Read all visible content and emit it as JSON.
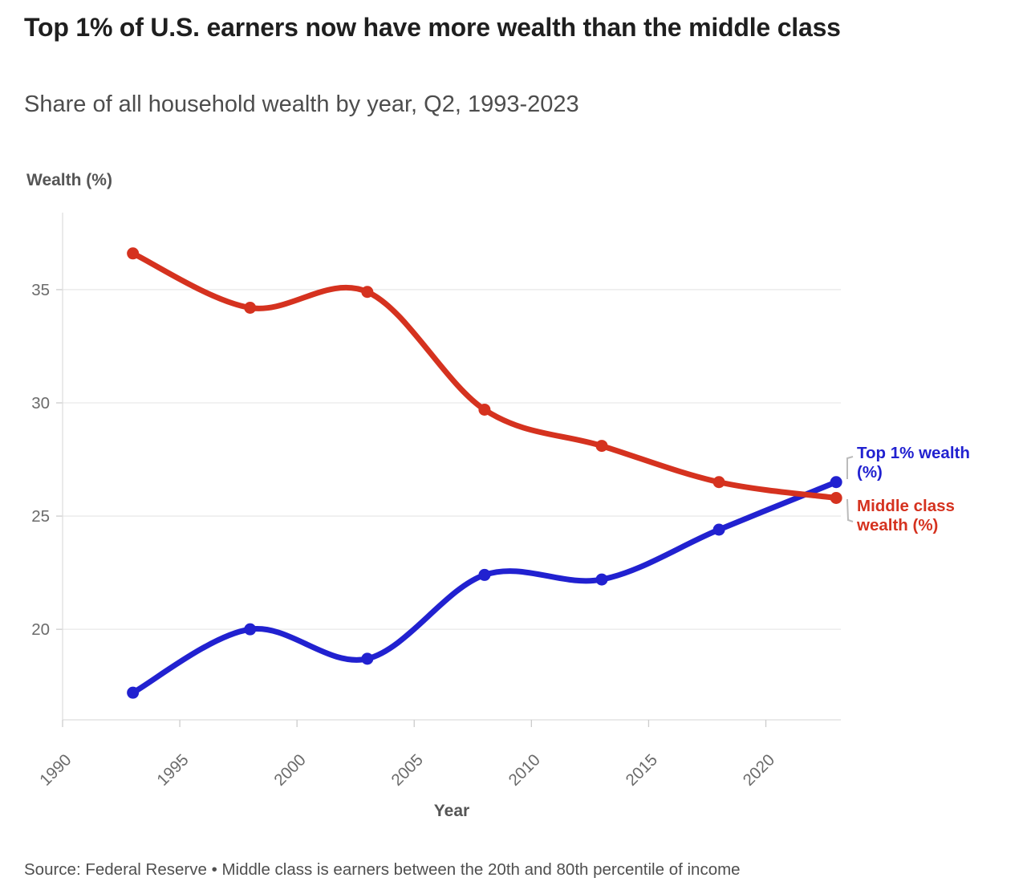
{
  "header": {
    "title": "Top 1% of U.S. earners now have more wealth than the middle class",
    "subtitle": "Share of all household wealth by year, Q2, 1993-2023"
  },
  "chart_data": {
    "type": "line",
    "title": "Top 1% of U.S. earners now have more wealth than the middle class",
    "subtitle": "Share of all household wealth by year, Q2, 1993-2023",
    "xlabel": "Year",
    "ylabel": "Wealth (%)",
    "x": [
      1993,
      1998,
      2003,
      2008,
      2013,
      2018,
      2023
    ],
    "series": [
      {
        "name": "Top 1% wealth (%)",
        "color": "#2121d0",
        "values": [
          17.2,
          20.0,
          18.7,
          22.4,
          22.2,
          24.4,
          26.5
        ]
      },
      {
        "name": "Middle class wealth (%)",
        "color": "#d5321f",
        "values": [
          36.6,
          34.2,
          34.9,
          29.7,
          28.1,
          26.5,
          25.8
        ]
      }
    ],
    "x_ticks": [
      1990,
      1995,
      2000,
      2005,
      2010,
      2015,
      2020
    ],
    "y_ticks": [
      20,
      25,
      30,
      35
    ],
    "x_range": [
      1990,
      2023.2
    ],
    "y_range": [
      16,
      38.4
    ],
    "grid": "horizontal",
    "curve": "smoothed",
    "legend_position": "right-of-line-ends"
  },
  "legend": {
    "top1_label": "Top 1% wealth (%)",
    "middle_label": "Middle class wealth (%)"
  },
  "footer": {
    "source": "Source: Federal Reserve • Middle class is earners between the 20th and 80th percentile of income"
  },
  "colors": {
    "grid_line": "#e9e9e9",
    "axis_line": "#dedede",
    "tick_mark": "#cccccc",
    "tick_text": "#6b6b6b",
    "connector": "#bbbbbb"
  }
}
